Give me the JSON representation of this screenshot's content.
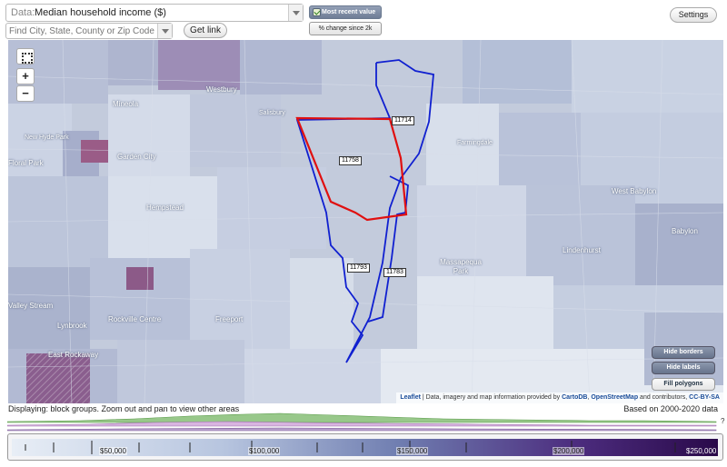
{
  "data_select": {
    "label": "Data:",
    "value": "Median household income ($)"
  },
  "find": {
    "placeholder": "Find City, State, County or Zip Code"
  },
  "get_link_label": "Get link",
  "toggle": {
    "most_recent_label": "Most recent value",
    "change_label": "% change since 2k"
  },
  "settings_label": "Settings",
  "map": {
    "towns": [
      "Westbury",
      "Mineola",
      "Salisbury",
      "New Hyde Park",
      "Garden City",
      "Hempstead",
      "Farmingdale",
      "West Babylon",
      "Babylon",
      "Lindenhurst",
      "Massapequa Park",
      "Freeport",
      "Rockville Centre",
      "Lynbrook",
      "East Rockaway",
      "Valley Stream",
      "Floral Park"
    ],
    "zip_labels": [
      "11714",
      "11758",
      "11793",
      "11783"
    ],
    "buttons": {
      "hide_borders": "Hide borders",
      "hide_labels": "Hide labels",
      "fill_polygons": "Fill polygons"
    },
    "attribution": {
      "leaflet": "Leaflet",
      "text_a": "| Data, imagery and map information provided by",
      "cartodb": "CartoDB",
      "osm": "OpenStreetMap",
      "text_b": "and contributors,",
      "license": "CC-BY-SA"
    },
    "selected_zip_color": "#e01010",
    "zip_border_color": "#1020d0"
  },
  "status": {
    "displaying": "Displaying: block groups. Zoom out and pan to view other areas",
    "based_on": "Based on 2000-2020 data"
  },
  "legend": {
    "ticks": [
      "$50,000",
      "$100,000",
      "$150,000",
      "$200,000",
      "$250,000"
    ],
    "colors": [
      "#e8eef6",
      "#9fb3d4",
      "#5a6aa8",
      "#4c2c7e",
      "#2a0a4a"
    ],
    "histogram_label": "?"
  }
}
